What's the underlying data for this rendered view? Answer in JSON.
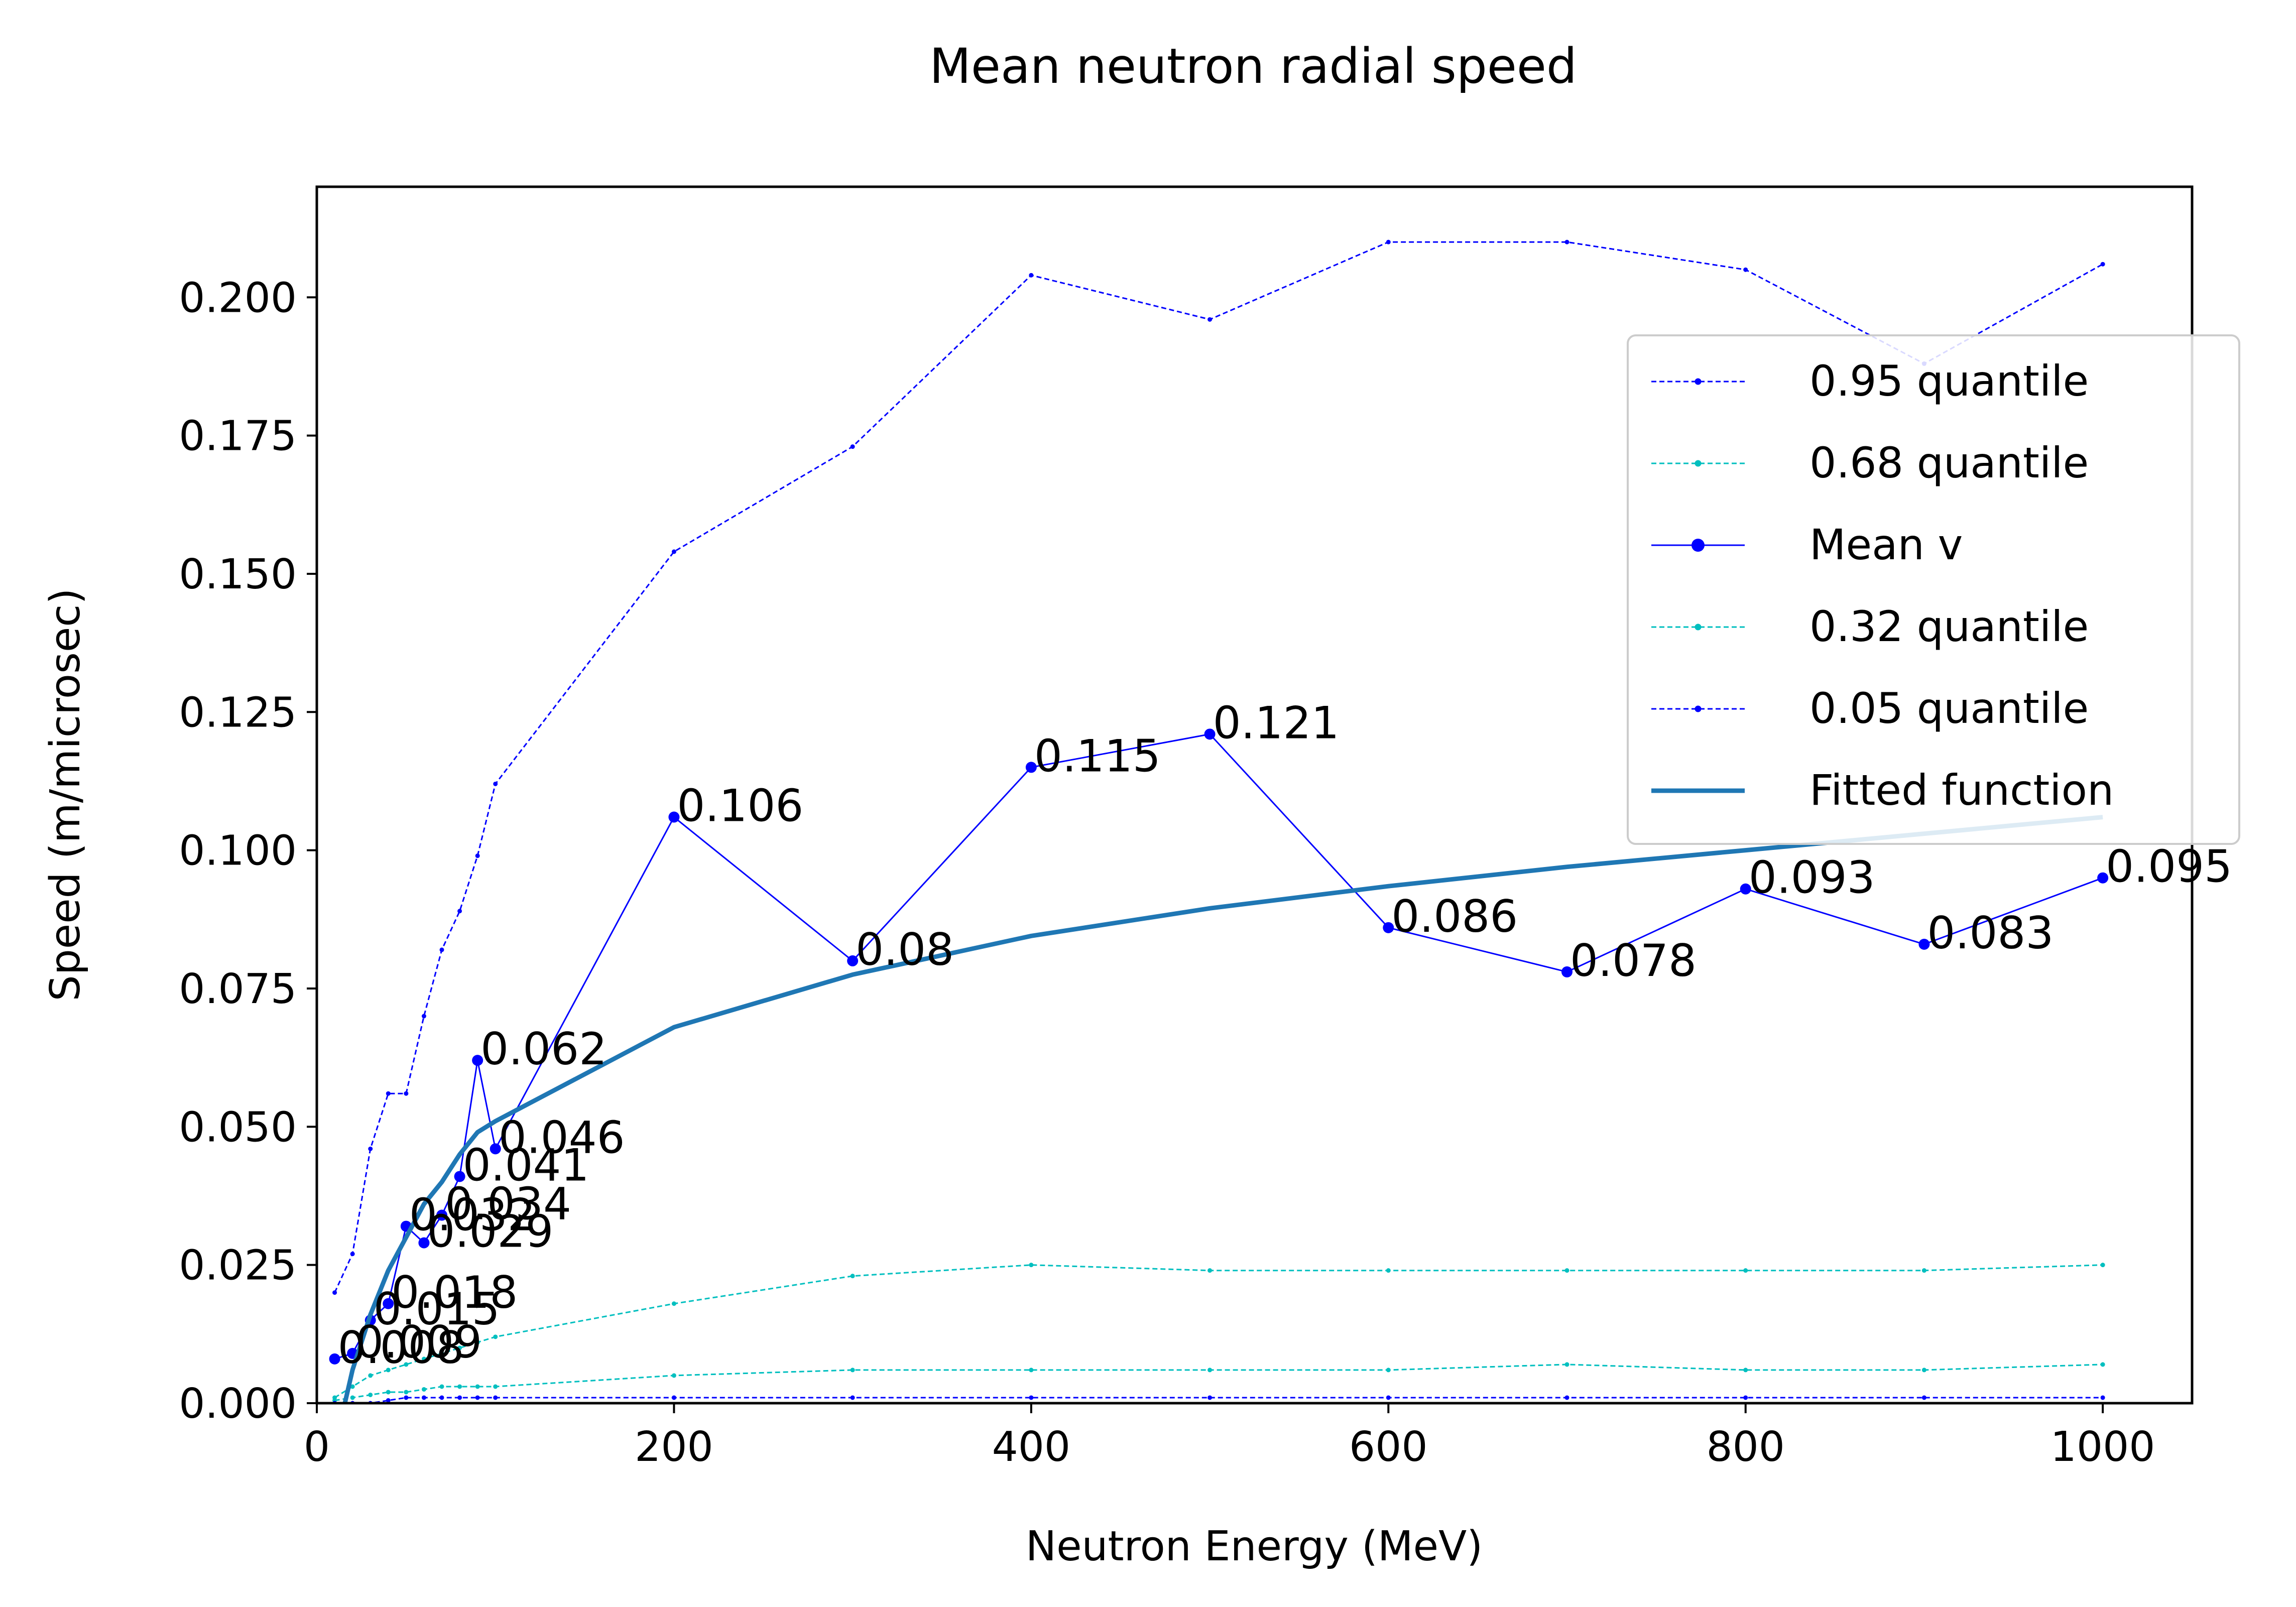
{
  "chart_data": {
    "type": "line",
    "title": "Mean neutron radial speed",
    "xlabel": "Neutron Energy (MeV)",
    "ylabel": "Speed (m/microsec)",
    "xlim": [
      0,
      1050
    ],
    "ylim": [
      0,
      0.22
    ],
    "xticks": [
      {
        "value": 0,
        "label": "0"
      },
      {
        "value": 200,
        "label": "200"
      },
      {
        "value": 400,
        "label": "400"
      },
      {
        "value": 600,
        "label": "600"
      },
      {
        "value": 800,
        "label": "800"
      },
      {
        "value": 1000,
        "label": "1000"
      }
    ],
    "yticks": [
      {
        "value": 0,
        "label": "0.000"
      },
      {
        "value": 0.025,
        "label": "0.025"
      },
      {
        "value": 0.05,
        "label": "0.050"
      },
      {
        "value": 0.075,
        "label": "0.075"
      },
      {
        "value": 0.1,
        "label": "0.100"
      },
      {
        "value": 0.125,
        "label": "0.125"
      },
      {
        "value": 0.15,
        "label": "0.150"
      },
      {
        "value": 0.175,
        "label": "0.175"
      },
      {
        "value": 0.2,
        "label": "0.200"
      }
    ],
    "grid": false,
    "legend_position": "right",
    "x": [
      10,
      20,
      30,
      40,
      50,
      60,
      70,
      80,
      90,
      100,
      200,
      300,
      400,
      500,
      600,
      700,
      800,
      900,
      1000
    ],
    "series": [
      {
        "name": "0.95 quantile",
        "color": "#0000ff",
        "style": "dashed",
        "marker": "small",
        "values": [
          0.02,
          0.027,
          0.046,
          0.056,
          0.056,
          0.07,
          0.082,
          0.089,
          0.099,
          0.112,
          0.154,
          0.173,
          0.204,
          0.196,
          0.21,
          0.21,
          0.205,
          0.188,
          0.206
        ]
      },
      {
        "name": "0.68 quantile",
        "color": "#00bfbf",
        "style": "dashed",
        "marker": "small",
        "values": [
          0.001,
          0.003,
          0.005,
          0.006,
          0.007,
          0.008,
          0.009,
          0.01,
          0.011,
          0.012,
          0.018,
          0.023,
          0.025,
          0.024,
          0.024,
          0.024,
          0.024,
          0.024,
          0.025
        ]
      },
      {
        "name": "Mean v",
        "color": "#0000ff",
        "style": "solid",
        "marker": "dot",
        "values": [
          0.008,
          0.009,
          0.015,
          0.018,
          0.032,
          0.029,
          0.034,
          0.041,
          0.062,
          0.046,
          0.106,
          0.08,
          0.115,
          0.121,
          0.086,
          0.078,
          0.093,
          0.083,
          0.095
        ],
        "labels": [
          "0.008",
          "0.009",
          "0.015",
          "0.018",
          "0.032",
          "0.029",
          "0.034",
          "0.041",
          "0.062",
          "0.046",
          "0.106",
          "0.08",
          "0.115",
          "0.121",
          "0.086",
          "0.078",
          "0.093",
          "0.083",
          "0.095"
        ]
      },
      {
        "name": "0.32 quantile",
        "color": "#00bfbf",
        "style": "dashed",
        "marker": "small",
        "values": [
          0.0005,
          0.001,
          0.0015,
          0.002,
          0.002,
          0.0025,
          0.003,
          0.003,
          0.003,
          0.003,
          0.005,
          0.006,
          0.006,
          0.006,
          0.006,
          0.007,
          0.006,
          0.006,
          0.007
        ]
      },
      {
        "name": "0.05 quantile",
        "color": "#0000ff",
        "style": "dashed",
        "marker": "small",
        "values": [
          0.0,
          0.0,
          0.0,
          0.0005,
          0.001,
          0.001,
          0.001,
          0.001,
          0.001,
          0.001,
          0.001,
          0.001,
          0.001,
          0.001,
          0.001,
          0.001,
          0.001,
          0.001,
          0.001
        ]
      },
      {
        "name": "Fitted function",
        "color": "#1f77b4",
        "style": "solid-thick",
        "marker": "none",
        "values": [
          -0.008,
          0.006,
          0.016,
          0.024,
          0.03,
          0.036,
          0.04,
          0.045,
          0.049,
          0.051,
          0.068,
          0.0775,
          0.0845,
          0.0895,
          0.0935,
          0.097,
          0.1,
          0.103,
          0.106
        ]
      }
    ]
  }
}
